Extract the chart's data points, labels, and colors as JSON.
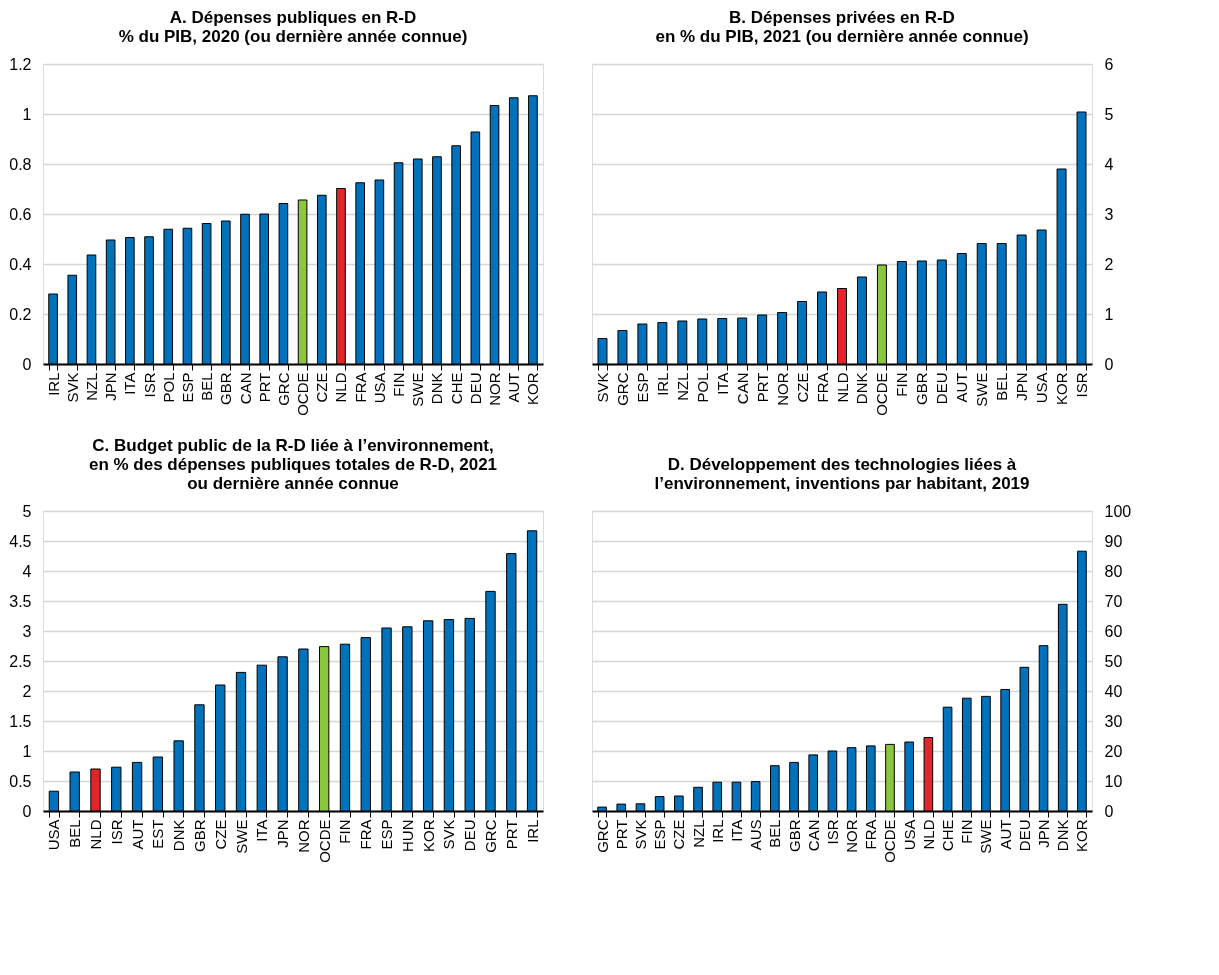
{
  "chart_data": [
    {
      "type": "bar",
      "title": "A. Dépenses publiques en R-D\n% du PIB, 2020 (ou dernière année connue)",
      "categories": [
        "IRL",
        "SVK",
        "NZL",
        "JPN",
        "ITA",
        "ISR",
        "POL",
        "ESP",
        "BEL",
        "GBR",
        "CAN",
        "PRT",
        "GRC",
        "OCDE",
        "CZE",
        "NLD",
        "FRA",
        "USA",
        "FIN",
        "SWE",
        "DNK",
        "CHE",
        "DEU",
        "NOR",
        "AUT",
        "KOR"
      ],
      "series": [
        {
          "axis": "y",
          "values": [
            0.28,
            0.355,
            0.436,
            0.496,
            0.506,
            0.509,
            0.539,
            0.543,
            0.562,
            0.572,
            0.599,
            0.6,
            0.642,
            0.656,
            0.675,
            0.702,
            0.725,
            0.736,
            0.805,
            0.82,
            0.829,
            0.873,
            0.928,
            1.034,
            1.065,
            1.073
          ],
          "colors": [
            "#0072bc",
            "#0072bc",
            "#0072bc",
            "#0072bc",
            "#0072bc",
            "#0072bc",
            "#0072bc",
            "#0072bc",
            "#0072bc",
            "#0072bc",
            "#0072bc",
            "#0072bc",
            "#0072bc",
            "#8cc63f",
            "#0072bc",
            "#e3242b",
            "#0072bc",
            "#0072bc",
            "#0072bc",
            "#0072bc",
            "#0072bc",
            "#0072bc",
            "#0072bc",
            "#0072bc",
            "#0072bc",
            "#0072bc"
          ]
        }
      ],
      "ylim": [
        0,
        1.2
      ],
      "yticks": [
        0,
        0.2,
        0.4,
        0.6,
        0.8,
        1,
        1.2
      ],
      "grid": "y"
    },
    {
      "type": "bar",
      "title": "B. Dépenses privées en R-D\nen % du PIB, 2021 (ou dernière année connue)",
      "categories": [
        "SVK",
        "GRC",
        "ESP",
        "IRL",
        "NZL",
        "POL",
        "ITA",
        "CAN",
        "PRT",
        "NOR",
        "CZE",
        "FRA",
        "NLD",
        "DNK",
        "OCDE",
        "FIN",
        "GBR",
        "DEU",
        "AUT",
        "SWE",
        "BEL",
        "JPN",
        "USA",
        "KOR",
        "ISR"
      ],
      "series": [
        {
          "axis": "y2",
          "values": [
            0.51,
            0.67,
            0.8,
            0.83,
            0.86,
            0.9,
            0.91,
            0.92,
            0.98,
            1.03,
            1.25,
            1.44,
            1.51,
            1.74,
            1.98,
            2.05,
            2.06,
            2.08,
            2.21,
            2.41,
            2.41,
            2.58,
            2.68,
            3.9,
            5.04
          ],
          "colors": [
            "#0072bc",
            "#0072bc",
            "#0072bc",
            "#0072bc",
            "#0072bc",
            "#0072bc",
            "#0072bc",
            "#0072bc",
            "#0072bc",
            "#0072bc",
            "#0072bc",
            "#0072bc",
            "#e3242b",
            "#0072bc",
            "#8cc63f",
            "#0072bc",
            "#0072bc",
            "#0072bc",
            "#0072bc",
            "#0072bc",
            "#0072bc",
            "#0072bc",
            "#0072bc",
            "#0072bc",
            "#0072bc"
          ]
        }
      ],
      "y2lim": [
        0,
        6
      ],
      "y2ticks": [
        0,
        1,
        2,
        3,
        4,
        5,
        6
      ],
      "grid": "y"
    },
    {
      "type": "bar",
      "title": "C. Budget public de la R-D liée à l’environnement,\nen % des dépenses publiques totales de R-D, 2021\nou dernière année connue",
      "categories": [
        "USA",
        "BEL",
        "NLD",
        "ISR",
        "AUT",
        "EST",
        "DNK",
        "GBR",
        "CZE",
        "SWE",
        "ITA",
        "JPN",
        "NOR",
        "OCDE",
        "FIN",
        "FRA",
        "ESP",
        "HUN",
        "KOR",
        "SVK",
        "DEU",
        "GRC",
        "PRT",
        "IRL"
      ],
      "series": [
        {
          "axis": "y",
          "values": [
            0.33,
            0.65,
            0.7,
            0.73,
            0.81,
            0.9,
            1.17,
            1.77,
            2.1,
            2.31,
            2.43,
            2.57,
            2.7,
            2.74,
            2.78,
            2.89,
            3.05,
            3.07,
            3.17,
            3.19,
            3.21,
            3.66,
            4.29,
            4.67
          ],
          "colors": [
            "#0072bc",
            "#0072bc",
            "#e3242b",
            "#0072bc",
            "#0072bc",
            "#0072bc",
            "#0072bc",
            "#0072bc",
            "#0072bc",
            "#0072bc",
            "#0072bc",
            "#0072bc",
            "#0072bc",
            "#8cc63f",
            "#0072bc",
            "#0072bc",
            "#0072bc",
            "#0072bc",
            "#0072bc",
            "#0072bc",
            "#0072bc",
            "#0072bc",
            "#0072bc",
            "#0072bc"
          ]
        }
      ],
      "ylim": [
        0,
        5
      ],
      "yticks": [
        0,
        0.5,
        1,
        1.5,
        2,
        2.5,
        3,
        3.5,
        4,
        4.5,
        5
      ],
      "grid": "y"
    },
    {
      "type": "bar",
      "title": "D. Développement des technologies liées à\nl’environnement, inventions par habitant, 2019",
      "categories": [
        "GRC",
        "PRT",
        "SVK",
        "ESP",
        "CZE",
        "NZL",
        "IRL",
        "ITA",
        "AUS",
        "BEL",
        "GBR",
        "CAN",
        "ISR",
        "NOR",
        "FRA",
        "OCDE",
        "USA",
        "NLD",
        "CHE",
        "FIN",
        "SWE",
        "AUT",
        "DEU",
        "JPN",
        "DNK",
        "KOR"
      ],
      "series": [
        {
          "axis": "y2",
          "values": [
            1.3,
            2.3,
            2.4,
            4.8,
            5,
            7.9,
            9.6,
            9.6,
            9.8,
            15.1,
            16.2,
            18.7,
            20,
            21.1,
            21.7,
            22.2,
            23,
            24.5,
            34.6,
            37.6,
            38.2,
            40.5,
            47.9,
            55.1,
            68.9,
            86.6
          ],
          "colors": [
            "#0072bc",
            "#0072bc",
            "#0072bc",
            "#0072bc",
            "#0072bc",
            "#0072bc",
            "#0072bc",
            "#0072bc",
            "#0072bc",
            "#0072bc",
            "#0072bc",
            "#0072bc",
            "#0072bc",
            "#0072bc",
            "#0072bc",
            "#8cc63f",
            "#0072bc",
            "#e3242b",
            "#0072bc",
            "#0072bc",
            "#0072bc",
            "#0072bc",
            "#0072bc",
            "#0072bc",
            "#0072bc",
            "#0072bc"
          ]
        }
      ],
      "y2lim": [
        0,
        100
      ],
      "y2ticks": [
        0,
        10,
        20,
        30,
        40,
        50,
        60,
        70,
        80,
        90,
        100
      ],
      "grid": "y"
    }
  ]
}
